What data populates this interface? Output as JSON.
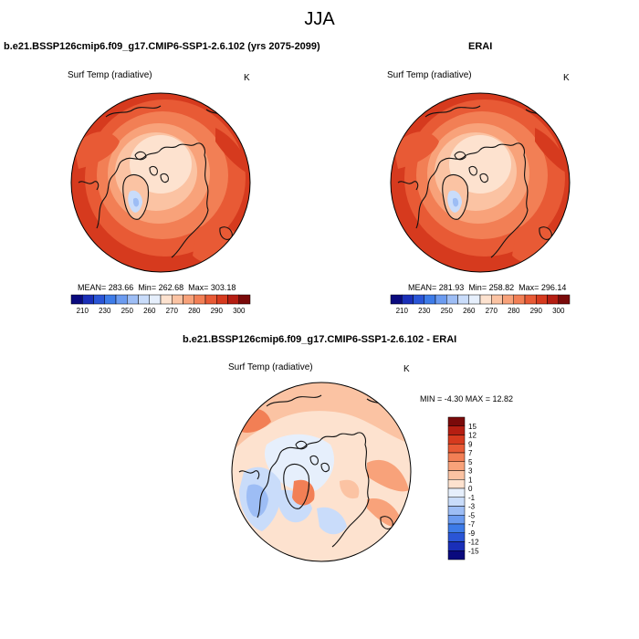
{
  "page": {
    "title": "JJA"
  },
  "chart_data": [
    {
      "type": "heatmap",
      "title": "b.e21.BSSP126cmip6.f09_g17.CMIP6-SSP1-2.6.102 (yrs 2075-2099)",
      "variable": "Surf Temp (radiative)",
      "units": "K",
      "stats": {
        "mean_label": "MEAN= 283.66",
        "min_label": "Min= 262.68",
        "max_label": "Max= 303.18",
        "mean": 283.66,
        "min": 262.68,
        "max": 303.18
      },
      "colorbar": {
        "orientation": "horizontal",
        "tick_labels": [
          "210",
          "230",
          "250",
          "260",
          "270",
          "280",
          "290",
          "300"
        ],
        "colors": [
          "#0a0a7e",
          "#1a2fb8",
          "#2a55d6",
          "#3d7be8",
          "#6b9bf0",
          "#9dbdf5",
          "#c9dcfa",
          "#e6effc",
          "#fde2cf",
          "#fbc3a3",
          "#f8a27a",
          "#f27f55",
          "#e85a35",
          "#d63a1e",
          "#b51e12",
          "#7a0a0a"
        ]
      },
      "projection": "north polar stereographic"
    },
    {
      "type": "heatmap",
      "title": "ERAI",
      "variable": "Surf Temp (radiative)",
      "units": "K",
      "stats": {
        "mean_label": "MEAN= 281.93",
        "min_label": "Min= 258.82",
        "max_label": "Max= 296.14",
        "mean": 281.93,
        "min": 258.82,
        "max": 296.14
      },
      "colorbar": {
        "orientation": "horizontal",
        "tick_labels": [
          "210",
          "230",
          "250",
          "260",
          "270",
          "280",
          "290",
          "300"
        ],
        "colors": [
          "#0a0a7e",
          "#1a2fb8",
          "#2a55d6",
          "#3d7be8",
          "#6b9bf0",
          "#9dbdf5",
          "#c9dcfa",
          "#e6effc",
          "#fde2cf",
          "#fbc3a3",
          "#f8a27a",
          "#f27f55",
          "#e85a35",
          "#d63a1e",
          "#b51e12",
          "#7a0a0a"
        ]
      },
      "projection": "north polar stereographic"
    },
    {
      "type": "heatmap",
      "title": "b.e21.BSSP126cmip6.f09_g17.CMIP6-SSP1-2.6.102 - ERAI",
      "variable": "Surf Temp (radiative)",
      "units": "K",
      "stats": {
        "label": "MIN = -4.30 MAX = 12.82",
        "min": -4.3,
        "max": 12.82
      },
      "colorbar": {
        "orientation": "vertical",
        "tick_labels": [
          "15",
          "12",
          "9",
          "7",
          "5",
          "3",
          "1",
          "0",
          "-1",
          "-3",
          "-5",
          "-7",
          "-9",
          "-12",
          "-15"
        ],
        "colors": [
          "#7a0a0a",
          "#b51e12",
          "#d63a1e",
          "#e85a35",
          "#f27f55",
          "#f8a27a",
          "#fbc3a3",
          "#fde2cf",
          "#e6effc",
          "#c9dcfa",
          "#9dbdf5",
          "#6b9bf0",
          "#3d7be8",
          "#2a55d6",
          "#1a2fb8",
          "#0a0a7e"
        ]
      },
      "projection": "north polar stereographic"
    }
  ]
}
